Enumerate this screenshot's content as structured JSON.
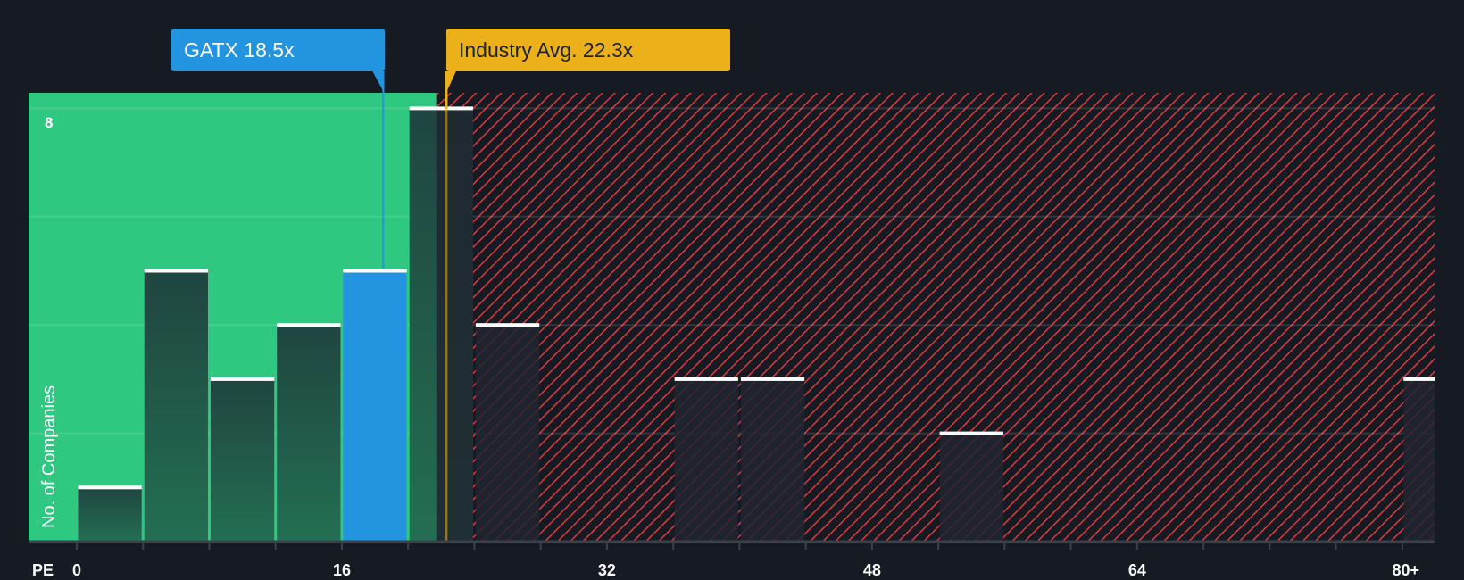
{
  "chart_data": {
    "type": "bar",
    "title": "",
    "xlabel": "PE",
    "ylabel": "No. of Companies",
    "bin_width": 4,
    "categories": [
      "0-4",
      "4-8",
      "8-12",
      "12-16",
      "16-20",
      "20-24",
      "24-28",
      "28-32",
      "32-36",
      "36-40",
      "40-44",
      "44-48",
      "48-52",
      "52-56",
      "56-60",
      "60-64",
      "64-68",
      "68-72",
      "72-76",
      "76-80",
      "80+"
    ],
    "values": [
      1,
      5,
      3,
      4,
      5,
      8,
      4,
      0,
      0,
      3,
      3,
      0,
      0,
      2,
      0,
      0,
      0,
      0,
      0,
      0,
      3
    ],
    "highlight_bin": "16-20",
    "x_ticks": [
      "0",
      "16",
      "32",
      "48",
      "64",
      "80+"
    ],
    "y_ticks": [
      "8"
    ],
    "ylim": [
      0,
      8.3
    ],
    "xlim": [
      -3,
      82
    ],
    "grid": true,
    "company_marker": {
      "label": "GATX 18.5x",
      "value": 18.5
    },
    "industry_marker": {
      "label": "Industry Avg. 22.3x",
      "value": 22.3
    },
    "regions": [
      {
        "name": "undervalued",
        "from": -3,
        "to": 21.7,
        "color": "#2ec880"
      },
      {
        "name": "overvalued",
        "from": 21.7,
        "to": 82,
        "color": "#e0393e"
      }
    ]
  },
  "labels": {
    "company": "GATX 18.5x",
    "industry": "Industry Avg. 22.3x",
    "ylabel": "No. of Companies",
    "ytick_top": "8",
    "pe": "PE",
    "xticks": [
      "0",
      "16",
      "32",
      "48",
      "64",
      "80+"
    ]
  },
  "colors": {
    "background": "#161b23",
    "green_zone": "#2ec880",
    "red_hatch": "#e0393e",
    "company": "#2394df",
    "industry": "#ebb01a",
    "bar_dark": "#1f4a3f"
  }
}
